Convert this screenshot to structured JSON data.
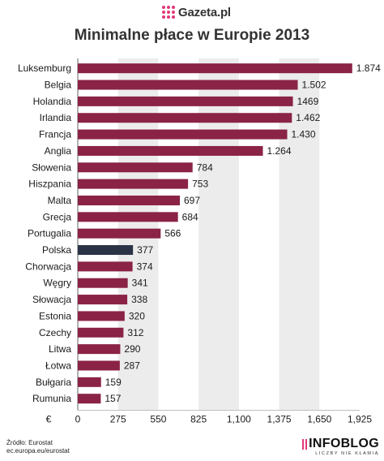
{
  "header": {
    "logo_text": "Gazeta.pl",
    "title": "Minimalne płace w Europie 2013"
  },
  "chart_data": {
    "type": "bar",
    "orientation": "horizontal",
    "title": "Minimalne płace w Europie 2013",
    "xlabel": "€",
    "xlim": [
      0,
      1925
    ],
    "xticks": [
      0,
      275,
      550,
      825,
      1100,
      1375,
      1650,
      1925
    ],
    "xtick_labels": [
      "0",
      "275",
      "550",
      "825",
      "1,100",
      "1,375",
      "1,650",
      "1,925"
    ],
    "grid": "alternating vertical bands",
    "categories": [
      "Luksemburg",
      "Belgia",
      "Holandia",
      "Irlandia",
      "Francja",
      "Anglia",
      "Słowenia",
      "Hiszpania",
      "Malta",
      "Grecja",
      "Portugalia",
      "Polska",
      "Chorwacja",
      "Węgry",
      "Słowacja",
      "Estonia",
      "Czechy",
      "Litwa",
      "Łotwa",
      "Bułgaria",
      "Rumunia"
    ],
    "values": [
      1874,
      1502,
      1469,
      1462,
      1430,
      1264,
      784,
      753,
      697,
      684,
      566,
      377,
      374,
      341,
      338,
      320,
      312,
      290,
      287,
      159,
      157
    ],
    "value_labels": [
      "1.874",
      "1.502",
      "1469",
      "1.462",
      "1.430",
      "1.264",
      "784",
      "753",
      "697",
      "684",
      "566",
      "377",
      "374",
      "341",
      "338",
      "320",
      "312",
      "290",
      "287",
      "159",
      "157"
    ],
    "highlight": "Polska",
    "colors": {
      "bar": "#8a2346",
      "highlight": "#2b3346",
      "band": "#ececec"
    }
  },
  "footer": {
    "source_line1": "Źródło: Eurostat",
    "source_line2": "ec.europa.eu/eurostat",
    "brand": "INFOBLOG",
    "brand_tagline": "LICZBY NIE KŁAMIĄ"
  }
}
